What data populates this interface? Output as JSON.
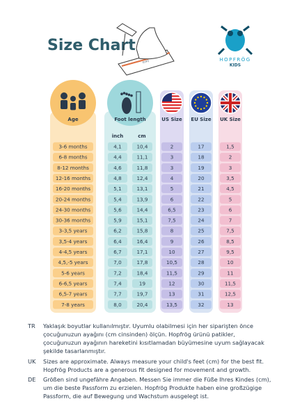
{
  "header": {
    "title": "Size Chart",
    "ruler_label": "(cm)",
    "logo": {
      "brand": "HOPFRÖG",
      "sub": "KIDS"
    }
  },
  "table": {
    "columns": [
      "Age",
      "Foot length",
      "US Size",
      "EU Size",
      "UK Size"
    ],
    "subcolumns": [
      "inch",
      "cm"
    ],
    "rows": [
      [
        "3-6 months",
        "4,1",
        "10,4",
        "2",
        "17",
        "1,5"
      ],
      [
        "6-8 months",
        "4,4",
        "11,1",
        "3",
        "18",
        "2"
      ],
      [
        "8-12 months",
        "4,6",
        "11,8",
        "3",
        "19",
        "3"
      ],
      [
        "12-16 months",
        "4,8",
        "12,4",
        "4",
        "20",
        "3,5"
      ],
      [
        "16-20 months",
        "5,1",
        "13,1",
        "5",
        "21",
        "4,5"
      ],
      [
        "20-24 months",
        "5,4",
        "13,9",
        "6",
        "22",
        "5"
      ],
      [
        "24-30 months",
        "5,6",
        "14,4",
        "6,5",
        "23",
        "6"
      ],
      [
        "30-36 months",
        "5,9",
        "15,1",
        "7,5",
        "24",
        "7"
      ],
      [
        "3-3,5 years",
        "6,2",
        "15,8",
        "8",
        "25",
        "7,5"
      ],
      [
        "3,5-4 years",
        "6,4",
        "16,4",
        "9",
        "26",
        "8,5"
      ],
      [
        "4-4,5 years",
        "6,7",
        "17,1",
        "10",
        "27",
        "9,5"
      ],
      [
        "4,5,-5 years",
        "7,0",
        "17,8",
        "10,5",
        "28",
        "10"
      ],
      [
        "5-6 years",
        "7,2",
        "18,4",
        "11,5",
        "29",
        "11"
      ],
      [
        "6-6,5 years",
        "7,4",
        "19",
        "12",
        "30",
        "11,5"
      ],
      [
        "6,5-7 years",
        "7,7",
        "19,7",
        "13",
        "31",
        "12,5"
      ],
      [
        "7-8 years",
        "8,0",
        "20,4",
        "13,5",
        "32",
        "13"
      ]
    ]
  },
  "notes": [
    {
      "code": "TR",
      "text": "Yaklaşık boyutlar kullanılmıştır. Uyumlu olabilmesi için her siparişten önce çocuğunuzun ayağını (cm cinsinden) ölçün. Hopfrög ürünü patikler, çocuğunuzun ayağının hareketini kısıtlamadan büyümesine uyum sağlayacak şekilde tasarlanmıştır."
    },
    {
      "code": "UK",
      "text": "Sizes are approximate. Always measure your child's feet (cm) for the best fit. Hopfrög Products are a generous fit designed for movement and growth."
    },
    {
      "code": "DE",
      "text": "Größen sind ungefähre Angaben. Messen Sie immer die Füße Ihres Kindes (cm), um die beste Passform zu erzielen. Hopfrög Produkte haben eine großzügige Passform, die auf Bewegung und Wachstum ausgelegt ist."
    }
  ]
}
